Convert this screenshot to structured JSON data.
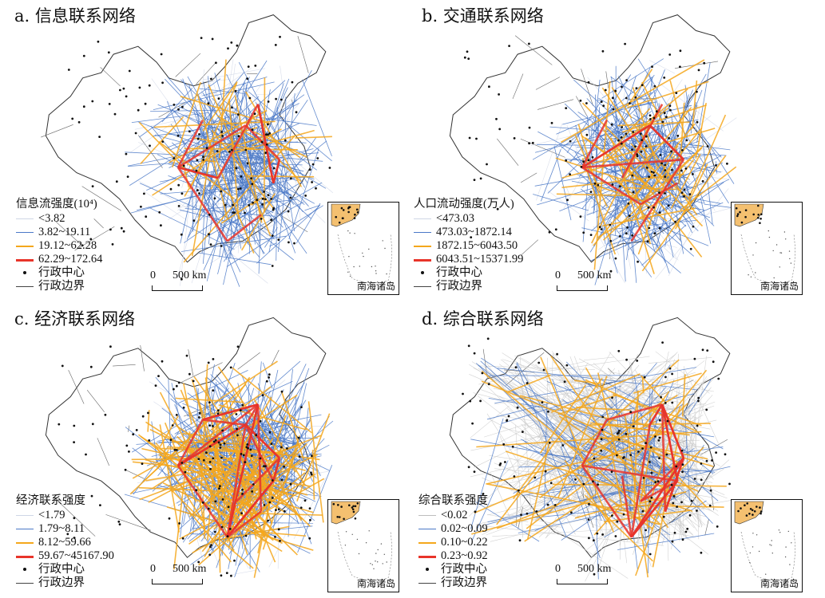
{
  "panels": [
    {
      "title": "a. 信息联系网络",
      "legend_title": "信息流强度(10⁴)",
      "classes": [
        {
          "label": "<3.82",
          "color": "#cfd6e6",
          "width": 1
        },
        {
          "label": "3.82~19.11",
          "color": "#4a78c7",
          "width": 1.5
        },
        {
          "label": "19.12~62.28",
          "color": "#f4a71c",
          "width": 2.5
        },
        {
          "label": "62.29~172.64",
          "color": "#e8342a",
          "width": 3.5
        }
      ],
      "center_label": "行政中心",
      "boundary_label": "行政边界",
      "scale_zero": "0",
      "scale_dist": "500 km",
      "inset_label": "南海诸岛"
    },
    {
      "title": "b. 交通联系网络",
      "legend_title": "人口流动强度(万人)",
      "classes": [
        {
          "label": "<473.03",
          "color": "#cfd6e6",
          "width": 1
        },
        {
          "label": "473.03~1872.14",
          "color": "#4a78c7",
          "width": 1.5
        },
        {
          "label": "1872.15~6043.50",
          "color": "#f4a71c",
          "width": 2.5
        },
        {
          "label": "6043.51~15371.99",
          "color": "#e8342a",
          "width": 3.5
        }
      ],
      "center_label": "行政中心",
      "boundary_label": "行政边界",
      "scale_zero": "0",
      "scale_dist": "500 km",
      "inset_label": "南海诸岛"
    },
    {
      "title": "c. 经济联系网络",
      "legend_title": "经济联系强度",
      "classes": [
        {
          "label": "<1.79",
          "color": "#cfd6e6",
          "width": 1
        },
        {
          "label": "1.79~8.11",
          "color": "#4a78c7",
          "width": 1.5
        },
        {
          "label": "8.12~59.66",
          "color": "#f4a71c",
          "width": 2.5
        },
        {
          "label": "59.67~45167.90",
          "color": "#e8342a",
          "width": 3.5
        }
      ],
      "center_label": "行政中心",
      "boundary_label": "行政边界",
      "scale_zero": "0",
      "scale_dist": "500 km",
      "inset_label": "南海诸岛"
    },
    {
      "title": "d. 综合联系网络",
      "legend_title": "综合联系强度",
      "classes": [
        {
          "label": "<0.02",
          "color": "#bdbdbd",
          "width": 1
        },
        {
          "label": "0.02~0.09",
          "color": "#4a78c7",
          "width": 1.5
        },
        {
          "label": "0.10~0.22",
          "color": "#f4a71c",
          "width": 2.5
        },
        {
          "label": "0.23~0.92",
          "color": "#e8342a",
          "width": 3.5
        }
      ],
      "center_label": "行政中心",
      "boundary_label": "行政边界",
      "scale_zero": "0",
      "scale_dist": "500 km",
      "inset_label": "南海诸岛"
    }
  ]
}
